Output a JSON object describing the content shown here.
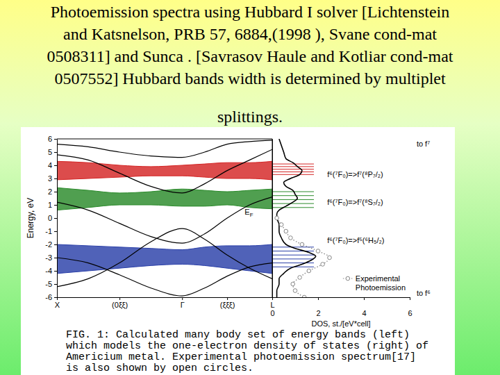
{
  "header": {
    "title_lines": [
      "Photoemission spectra using Hubbard I solver [Lichtenstein",
      "and Katsnelson,  PRB 57, 6884,(1998 ), Svane cond-mat",
      "0508311] and Sunca . [Savrasov Haule and Kotliar cond-mat",
      "0507552]  Hubbard bands width is determined  by multiplet",
      "splittings."
    ]
  },
  "chart_data": [
    {
      "type": "line",
      "x": [
        0,
        0.25,
        0.5,
        0.75,
        1,
        1.18,
        1.36,
        1.54,
        1.72
      ],
      "xlim": [
        0,
        1.72
      ],
      "xticks": [
        {
          "value": 0,
          "label": "X"
        },
        {
          "value": 0.5,
          "label": "(0ξξ)"
        },
        {
          "value": 1,
          "label": "Γ"
        },
        {
          "value": 1.36,
          "label": "(ξξξ)"
        },
        {
          "value": 1.72,
          "label": "L"
        }
      ],
      "ylim": [
        -6,
        6
      ],
      "yticks": [
        -6,
        -5,
        -4,
        -3,
        -2,
        -1,
        0,
        1,
        2,
        3,
        4,
        5,
        6
      ],
      "y_label": "Energy, eV",
      "annotations": [
        {
          "text": "E",
          "subscript": "F",
          "x": 1.5,
          "y": 0.25
        }
      ],
      "series": [
        {
          "type": "area",
          "color": "#d42424",
          "values": [
            4.3,
            4.2,
            4.0,
            3.9,
            4.0,
            4.1,
            4.2,
            4.2,
            4.3
          ],
          "lower": [
            2.9,
            3.0,
            3.1,
            3.2,
            3.2,
            3.1,
            3.0,
            3.0,
            2.9
          ]
        },
        {
          "type": "area",
          "color": "#2a8a2a",
          "values": [
            2.3,
            2.1,
            1.9,
            2.0,
            2.2,
            2.1,
            2.0,
            2.1,
            2.2
          ],
          "lower": [
            0.6,
            0.8,
            1.0,
            1.0,
            0.9,
            0.9,
            1.0,
            0.8,
            0.7
          ]
        },
        {
          "type": "area",
          "color": "#2a3fa8",
          "values": [
            -2.0,
            -2.1,
            -2.2,
            -2.3,
            -2.4,
            -2.2,
            -2.1,
            -2.1,
            -2.0
          ],
          "lower": [
            -4.2,
            -4.0,
            -3.8,
            -3.6,
            -3.5,
            -3.6,
            -3.8,
            -4.0,
            -4.2
          ]
        },
        {
          "type": "line",
          "color": "#000000",
          "values": [
            -3.0,
            -3.4,
            -4.3,
            -5.3,
            -5.9,
            -5.3,
            -4.4,
            -3.7,
            -3.4
          ]
        },
        {
          "type": "line",
          "color": "#000000",
          "values": [
            -5.2,
            -4.6,
            -3.4,
            -1.8,
            -0.8,
            -1.6,
            -2.8,
            -3.8,
            -4.6
          ]
        },
        {
          "type": "line",
          "color": "#000000",
          "values": [
            1.2,
            0.6,
            -0.4,
            -1.4,
            -1.9,
            -1.2,
            0.0,
            1.0,
            1.6
          ]
        },
        {
          "type": "line",
          "color": "#000000",
          "values": [
            4.8,
            4.4,
            3.4,
            2.4,
            1.9,
            2.6,
            3.6,
            4.4,
            5.2
          ]
        },
        {
          "type": "line",
          "color": "#000000",
          "values": [
            5.6,
            5.4,
            5.0,
            4.7,
            4.6,
            5.0,
            5.6,
            5.8,
            5.9
          ]
        }
      ]
    },
    {
      "type": "line",
      "xlim": [
        0,
        6
      ],
      "xticks": [
        0,
        2,
        4,
        6
      ],
      "ylim": [
        -6,
        6
      ],
      "tick_labels": "x",
      "x_label": "DOS, st./[eV*cell]",
      "legend": "lower right",
      "levels": [
        {
          "color": "#d42424",
          "values": [
            3.3,
            3.5,
            3.7,
            3.9,
            4.1
          ]
        },
        {
          "color": "#2a8a2a",
          "values": [
            0.8,
            1.1,
            1.4,
            1.7,
            2.0
          ]
        },
        {
          "color": "#2a3fa8",
          "values": [
            -2.2,
            -2.5,
            -2.8,
            -3.1,
            -3.4,
            -3.7
          ]
        }
      ],
      "annotations": [
        {
          "text": "to f⁷",
          "x": 6.3,
          "y": 5.4
        },
        {
          "text": "f⁶(⁷F₀)=>f⁷(⁸P₇/₂)",
          "x": 2.4,
          "y": 3.1
        },
        {
          "text": "f⁶(⁷F₀)=>f⁷(⁸S₇/₂)",
          "x": 2.4,
          "y": 1.0
        },
        {
          "text": "f⁶(⁷F₀)=>f⁵(⁶H₅/₂)",
          "x": 2.4,
          "y": -1.9
        },
        {
          "text": "to f⁶",
          "x": 6.3,
          "y": -5.9
        }
      ],
      "series": [
        {
          "color": "#000000",
          "line_style": "solid",
          "x": [
            0.3,
            0.4,
            0.5,
            0.6,
            0.9,
            1.1,
            1.3,
            1.2,
            0.8,
            0.5,
            0.6,
            0.9,
            1.0,
            1.1,
            0.9,
            0.6,
            0.3,
            0.2,
            0.2,
            0.3,
            0.3,
            0.4,
            0.6,
            1.0,
            1.6,
            1.9,
            1.7,
            1.3,
            0.8,
            0.5,
            0.3,
            0.3,
            0.2,
            0.2
          ],
          "values": [
            6,
            5.5,
            5,
            4.5,
            4.2,
            3.9,
            3.6,
            3.3,
            3,
            2.7,
            2.4,
            2.1,
            1.8,
            1.5,
            1.2,
            0.9,
            0.6,
            0.3,
            0,
            -0.5,
            -1,
            -1.5,
            -2,
            -2.3,
            -2.6,
            -2.9,
            -3.2,
            -3.5,
            -3.8,
            -4.2,
            -4.6,
            -5,
            -5.5,
            -6
          ]
        },
        {
          "name": "Experimental Photoemission",
          "color": "#888888",
          "marker": "circle",
          "line_style": "dotted",
          "x": [
            0.2,
            0.4,
            0.6,
            0.8,
            1.3,
            2.0,
            2.5,
            2.2,
            1.6,
            1.2,
            0.9,
            1.0,
            1.4
          ],
          "values": [
            0,
            -0.5,
            -1,
            -1.5,
            -2,
            -2.5,
            -3,
            -3.5,
            -4,
            -4.5,
            -5,
            -5.5,
            -6
          ]
        }
      ]
    }
  ],
  "caption": {
    "lines": [
      "FIG. 1: Calculated many body set of energy bands (left)",
      "which models the one-electron density of states (right) of",
      "Americium metal. Experimental photoemission spectrum[17]",
      "is also shown by open circles."
    ]
  }
}
